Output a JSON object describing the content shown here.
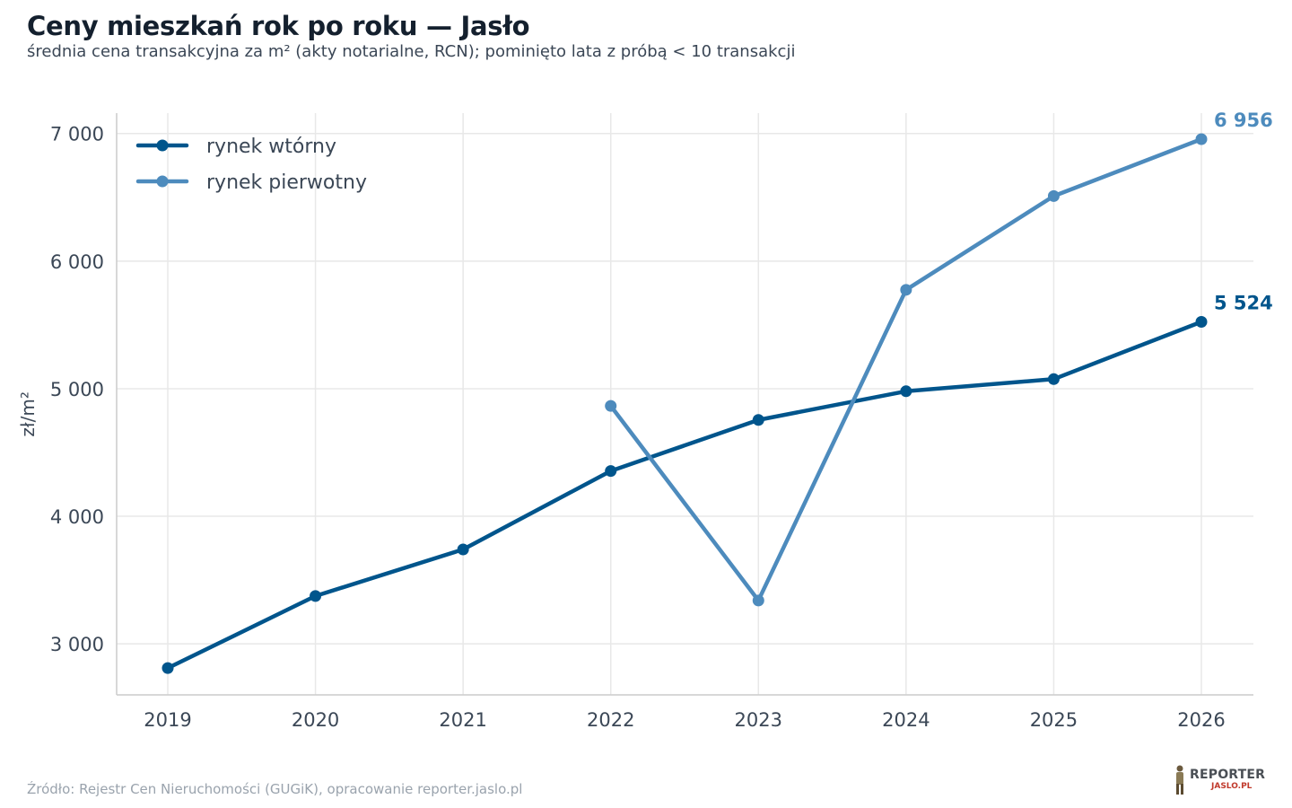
{
  "header": {
    "title": "Ceny mieszkań rok po roku — Jasło",
    "subtitle": "średnia cena transakcyjna za m² (akty notarialne, RCN); pominięto lata z próbą < 10 transakcji"
  },
  "footer": {
    "source": "Źródło: Rejestr Cen Nieruchomości (GUGiK), opracowanie reporter.jaslo.pl",
    "logo_line1": "REPORTER",
    "logo_line2": "JASLO.PL"
  },
  "colors": {
    "secondary": "#00558c",
    "primary": "#4d8bbd",
    "grid": "#e8e8e8",
    "axis": "#cccccc",
    "tick_text": "#3b4756"
  },
  "chart_data": {
    "type": "line",
    "title": "Ceny mieszkań rok po roku — Jasło",
    "xlabel": "",
    "ylabel": "zł/m²",
    "x": [
      2019,
      2020,
      2021,
      2022,
      2023,
      2024,
      2025,
      2026
    ],
    "x_tick_labels": [
      "2019",
      "2020",
      "2021",
      "2022",
      "2023",
      "2024",
      "2025",
      "2026"
    ],
    "ylim": [
      2600,
      7160
    ],
    "y_ticks": [
      3000,
      4000,
      5000,
      6000,
      7000
    ],
    "y_tick_labels": [
      "3 000",
      "4 000",
      "5 000",
      "6 000",
      "7 000"
    ],
    "grid": true,
    "legend_position": "top-left",
    "series": [
      {
        "name": "rynek wtórny",
        "color_key": "secondary",
        "x": [
          2019,
          2020,
          2021,
          2022,
          2023,
          2024,
          2025,
          2026
        ],
        "values": [
          2810,
          3375,
          3740,
          4355,
          4755,
          4980,
          5075,
          5524
        ],
        "end_label": "5 524"
      },
      {
        "name": "rynek pierwotny",
        "color_key": "primary",
        "x": [
          2022,
          2023,
          2024,
          2025,
          2026
        ],
        "values": [
          4865,
          3340,
          5775,
          6510,
          6956
        ],
        "end_label": "6 956"
      }
    ]
  }
}
